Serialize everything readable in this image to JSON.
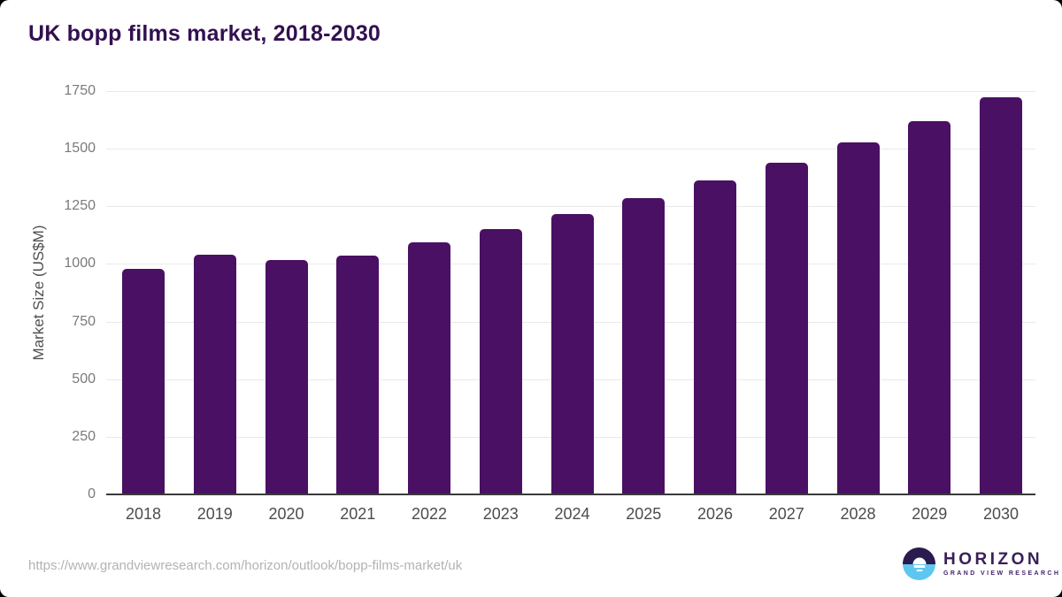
{
  "chart_data": {
    "type": "bar",
    "title": "UK bopp films market, 2018-2030",
    "categories": [
      "2018",
      "2019",
      "2020",
      "2021",
      "2022",
      "2023",
      "2024",
      "2025",
      "2026",
      "2027",
      "2028",
      "2029",
      "2030"
    ],
    "values": [
      976,
      1035,
      1012,
      1032,
      1090,
      1148,
      1212,
      1281,
      1358,
      1437,
      1524,
      1616,
      1718
    ],
    "xlabel": "",
    "ylabel": "Market Size (US$M)",
    "ylim": [
      0,
      1750
    ],
    "ytick_step": 250,
    "grid": true,
    "legend": "none",
    "bar_color": "#4a1063"
  },
  "footer": {
    "source_url": "https://www.grandviewresearch.com/horizon/outlook/bopp-films-market/uk",
    "logo": {
      "name": "HORIZON",
      "subtitle": "GRAND VIEW RESEARCH"
    }
  },
  "colors": {
    "title": "#331051",
    "bar": "#4a1063",
    "gridline": "#e9e9e9",
    "axis_line": "#3a3a3a",
    "tick_label": "#7a7a7a",
    "x_label": "#4c4c4c",
    "url_text": "#b3b3b3",
    "logo_dark": "#2a1b4e",
    "logo_blue": "#5ec7f0"
  }
}
